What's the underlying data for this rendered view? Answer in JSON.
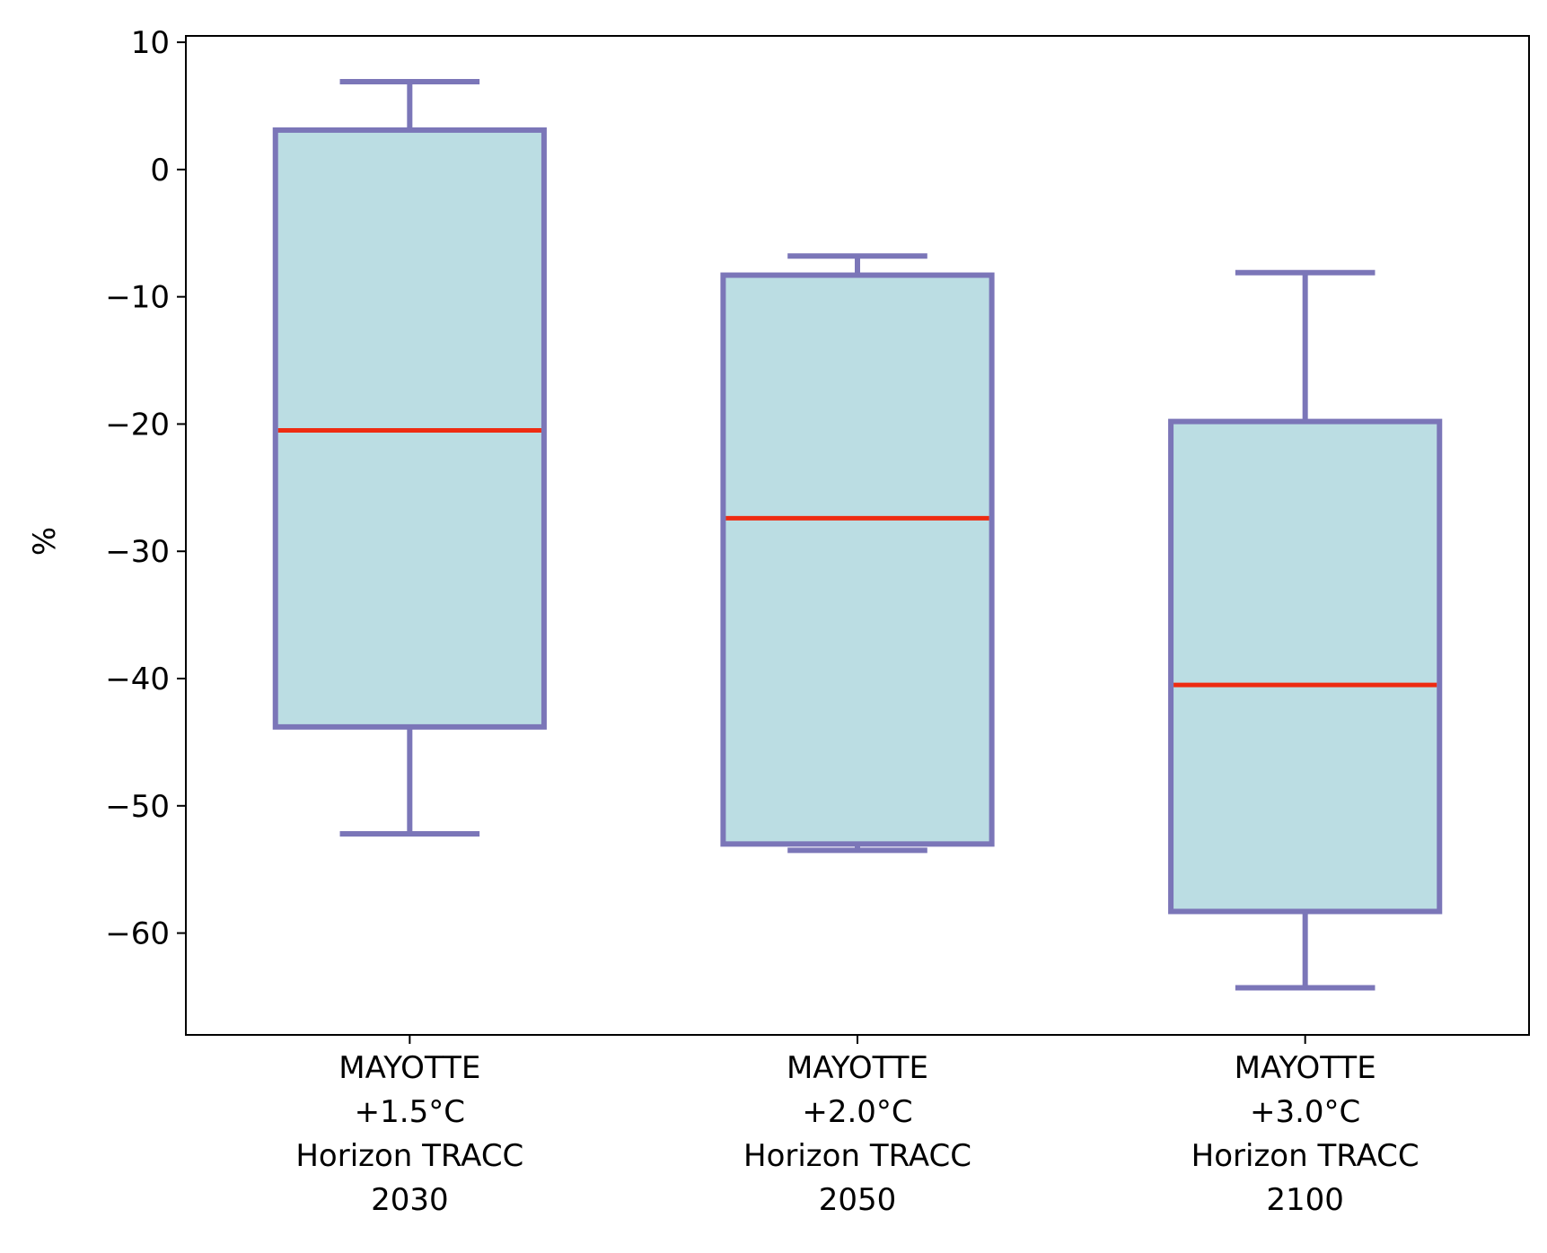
{
  "chart_data": {
    "type": "boxplot",
    "title": "",
    "xlabel": "",
    "ylabel": "%",
    "ylim": [
      -68,
      10.5
    ],
    "yticks": [
      10,
      0,
      -10,
      -20,
      -30,
      -40,
      -50,
      -60
    ],
    "ytick_labels": [
      "10",
      "0",
      "−10",
      "−20",
      "−30",
      "−40",
      "−50",
      "−60"
    ],
    "grid": false,
    "legend": "none",
    "colors": {
      "box_fill": "#bbdde3",
      "box_edge": "#7b76b8",
      "median": "#ee2b12",
      "axis": "#000000"
    },
    "categories": [
      [
        "MAYOTTE",
        "+1.5°C",
        "Horizon TRACC",
        "2030"
      ],
      [
        "MAYOTTE",
        "+2.0°C",
        "Horizon TRACC",
        "2050"
      ],
      [
        "MAYOTTE",
        "+3.0°C",
        "Horizon TRACC",
        "2100"
      ]
    ],
    "boxes": [
      {
        "whisker_low": -52.2,
        "q1": -43.8,
        "median": -20.5,
        "q3": 3.1,
        "whisker_high": 6.9
      },
      {
        "whisker_low": -53.5,
        "q1": -53.0,
        "median": -27.4,
        "q3": -8.3,
        "whisker_high": -6.8
      },
      {
        "whisker_low": -64.3,
        "q1": -58.3,
        "median": -40.5,
        "q3": -19.8,
        "whisker_high": -8.1
      }
    ]
  }
}
